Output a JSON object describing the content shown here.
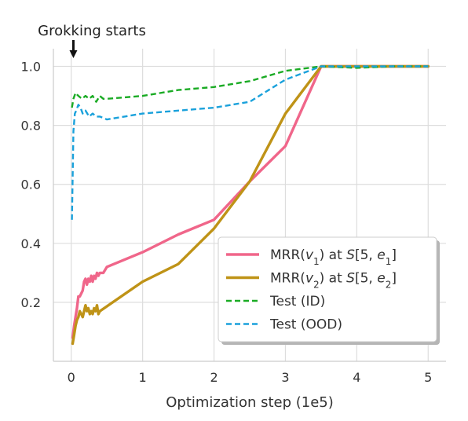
{
  "chart_data": {
    "type": "line",
    "xlabel": "Optimization step (1e5)",
    "ylabel": "",
    "xlim": [
      -0.25,
      5.25
    ],
    "ylim": [
      0.0,
      1.06
    ],
    "xticks": [
      0,
      1,
      2,
      3,
      4,
      5
    ],
    "yticks": [
      0.2,
      0.4,
      0.6,
      0.8,
      1.0
    ],
    "xtick_labels": [
      "0",
      "1",
      "2",
      "3",
      "4",
      "5"
    ],
    "ytick_labels": [
      "0.2",
      "0.4",
      "0.6",
      "0.8",
      "1.0"
    ],
    "grid": true,
    "legend_position": "lower-right",
    "annotation": {
      "text": "Grokking starts",
      "x": 0.03
    },
    "series": [
      {
        "name": "MRR(v₁) at S[5, e₁]",
        "legend_parts": [
          [
            "MRR(",
            "n"
          ],
          [
            "v",
            "i"
          ],
          [
            "1",
            "sub"
          ],
          [
            ") at ",
            "n"
          ],
          [
            "S",
            "i"
          ],
          [
            "[5, ",
            "n"
          ],
          [
            "e",
            "i"
          ],
          [
            "1",
            "sub"
          ],
          [
            "]",
            "n"
          ]
        ],
        "color": "#f0668a",
        "dash": "solid",
        "x": [
          0.02,
          0.04,
          0.06,
          0.08,
          0.1,
          0.12,
          0.14,
          0.16,
          0.18,
          0.2,
          0.22,
          0.24,
          0.26,
          0.28,
          0.3,
          0.32,
          0.34,
          0.36,
          0.38,
          0.4,
          0.45,
          0.5,
          1.0,
          1.5,
          2.0,
          2.5,
          3.0,
          3.5,
          4.0,
          4.5,
          5.0
        ],
        "y": [
          0.08,
          0.12,
          0.15,
          0.18,
          0.22,
          0.22,
          0.23,
          0.24,
          0.27,
          0.28,
          0.26,
          0.28,
          0.27,
          0.29,
          0.27,
          0.29,
          0.28,
          0.3,
          0.29,
          0.3,
          0.3,
          0.32,
          0.37,
          0.43,
          0.48,
          0.61,
          0.73,
          1.0,
          1.0,
          1.0,
          1.0
        ]
      },
      {
        "name": "MRR(v₂) at S[5, e₂]",
        "legend_parts": [
          [
            "MRR(",
            "n"
          ],
          [
            "v",
            "i"
          ],
          [
            "2",
            "sub"
          ],
          [
            ") at ",
            "n"
          ],
          [
            "S",
            "i"
          ],
          [
            "[5, ",
            "n"
          ],
          [
            "e",
            "i"
          ],
          [
            "2",
            "sub"
          ],
          [
            "]",
            "n"
          ]
        ],
        "color": "#bf9317",
        "dash": "solid",
        "x": [
          0.02,
          0.04,
          0.06,
          0.08,
          0.1,
          0.12,
          0.14,
          0.16,
          0.18,
          0.2,
          0.22,
          0.24,
          0.26,
          0.28,
          0.3,
          0.32,
          0.34,
          0.36,
          0.38,
          0.4,
          1.0,
          1.5,
          2.0,
          2.5,
          3.0,
          3.5,
          4.0,
          4.5,
          5.0
        ],
        "y": [
          0.06,
          0.09,
          0.12,
          0.14,
          0.15,
          0.17,
          0.16,
          0.15,
          0.17,
          0.19,
          0.17,
          0.18,
          0.16,
          0.17,
          0.16,
          0.18,
          0.17,
          0.19,
          0.16,
          0.17,
          0.27,
          0.33,
          0.45,
          0.61,
          0.84,
          1.0,
          1.0,
          1.0,
          1.0
        ]
      },
      {
        "name": "Test (ID)",
        "legend_parts": [
          [
            "Test (ID)",
            "n"
          ]
        ],
        "color": "#1aab24",
        "dash": "dashed",
        "x": [
          0.01,
          0.03,
          0.06,
          0.1,
          0.15,
          0.2,
          0.25,
          0.3,
          0.35,
          0.4,
          0.45,
          0.5,
          1.0,
          1.5,
          2.0,
          2.5,
          3.0,
          3.5,
          4.0,
          4.5,
          5.0
        ],
        "y": [
          0.86,
          0.89,
          0.91,
          0.9,
          0.89,
          0.9,
          0.89,
          0.9,
          0.88,
          0.9,
          0.89,
          0.89,
          0.9,
          0.92,
          0.93,
          0.95,
          0.985,
          1.0,
          0.995,
          1.0,
          1.0
        ]
      },
      {
        "name": "Test (OOD)",
        "legend_parts": [
          [
            "Test (OOD)",
            "n"
          ]
        ],
        "color": "#1aa1db",
        "dash": "dashed",
        "x": [
          0.01,
          0.03,
          0.05,
          0.07,
          0.1,
          0.13,
          0.16,
          0.2,
          0.25,
          0.3,
          0.35,
          0.4,
          0.5,
          1.0,
          1.5,
          2.0,
          2.5,
          3.0,
          3.5,
          4.0,
          4.5,
          5.0
        ],
        "y": [
          0.48,
          0.78,
          0.84,
          0.85,
          0.87,
          0.86,
          0.84,
          0.85,
          0.83,
          0.84,
          0.83,
          0.83,
          0.82,
          0.84,
          0.85,
          0.86,
          0.88,
          0.955,
          1.0,
          1.0,
          1.0,
          1.0
        ]
      }
    ]
  }
}
